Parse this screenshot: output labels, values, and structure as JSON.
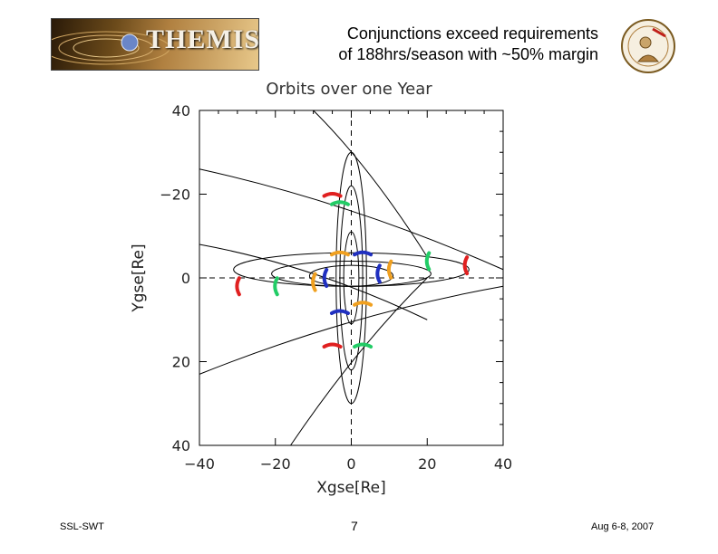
{
  "header": {
    "logo_text": "THEMIS",
    "title_line1": "Conjunctions exceed requirements",
    "title_line2": "of 188hrs/season with ~50% margin"
  },
  "footer": {
    "left": "SSL-SWT",
    "page_number": "7",
    "date": "Aug 6-8, 2007"
  },
  "chart_data": {
    "type": "line",
    "title": "Orbits over one Year",
    "xlabel": "Xgse[Re]",
    "ylabel": "Ygse[Re]",
    "xlim": [
      -40,
      40
    ],
    "ylim": [
      -40,
      40
    ],
    "xticks": [
      "−40",
      "−20",
      "0",
      "20",
      "40"
    ],
    "yticks": [
      "40",
      "20",
      "0",
      "−20",
      "40"
    ],
    "grid": false,
    "colors": {
      "orbit": "#000000",
      "red": "#e02020",
      "green": "#22cc66",
      "orange": "#f0a020",
      "blue": "#2030c0"
    },
    "orbits": [
      {
        "x": [
          -31,
          31,
          0
        ],
        "y": [
          -2,
          6,
          0
        ]
      },
      {
        "x": [
          -21,
          21,
          0
        ],
        "y": [
          -2,
          4,
          0
        ]
      },
      {
        "x": [
          -11,
          11,
          0
        ],
        "y": [
          -2,
          3,
          0
        ]
      },
      {
        "x": [
          -4,
          4,
          0
        ],
        "y": [
          -30,
          30,
          0
        ]
      },
      {
        "x": [
          -3,
          3,
          0
        ],
        "y": [
          -22,
          22,
          0
        ]
      },
      {
        "x": [
          -2,
          2,
          0
        ],
        "y": [
          -11,
          11,
          0
        ]
      }
    ],
    "series": [
      {
        "color": "red",
        "x": [
          -30,
          30,
          -5,
          -5
        ],
        "y": [
          -2,
          3,
          20,
          -16
        ]
      },
      {
        "color": "green",
        "x": [
          -20,
          20,
          -3,
          3
        ],
        "y": [
          -2,
          4,
          18,
          -16
        ]
      },
      {
        "color": "orange",
        "x": [
          -10,
          10,
          -3,
          3
        ],
        "y": [
          -1,
          2,
          6,
          -6
        ]
      },
      {
        "color": "blue",
        "x": [
          -7,
          7,
          3,
          -3
        ],
        "y": [
          0,
          1,
          6,
          -8
        ]
      }
    ]
  }
}
